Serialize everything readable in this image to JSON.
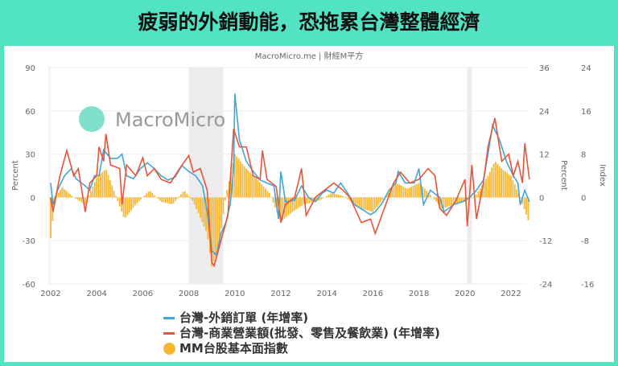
{
  "header": {
    "title": "疲弱的外銷動能，恐拖累台灣整體經濟"
  },
  "chart_data": {
    "type": "line+bar",
    "source": "MacroMicro.me | 財經M平方",
    "watermark": "MacroMicro",
    "xlim": [
      2002,
      2022.9
    ],
    "xticks": [
      "2002",
      "2004",
      "2006",
      "2008",
      "2010",
      "2012",
      "2014",
      "2016",
      "2018",
      "2020",
      "2022"
    ],
    "axes": {
      "left": {
        "label": "Percent",
        "ylim": [
          -60,
          90
        ],
        "ticks": [
          "90",
          "60",
          "30",
          "0",
          "-30",
          "-60"
        ]
      },
      "right1": {
        "label": "Percent",
        "ylim": [
          -24,
          36
        ],
        "ticks": [
          "36",
          "24",
          "12",
          "0",
          "-12",
          "-24"
        ]
      },
      "right2": {
        "label": "Index",
        "ylim": [
          -16,
          24
        ],
        "ticks": [
          "24",
          "16",
          "8",
          "0",
          "-8",
          "-16"
        ]
      }
    },
    "grid": true,
    "legend_position": "bottom",
    "recessions": [
      [
        2008.0,
        2009.5
      ],
      [
        2020.1,
        2020.3
      ]
    ],
    "colors": {
      "blue": "#3fa7d6",
      "red": "#e8543a",
      "bar": "#f7b731",
      "recession": "#ececef"
    },
    "series": [
      {
        "name": "台灣-外銷訂單 (年增率)",
        "type": "line",
        "axis": "left",
        "color": "#3fa7d6",
        "x": [
          2002.0,
          2002.1,
          2002.3,
          2002.6,
          2002.9,
          2003.1,
          2003.5,
          2003.7,
          2003.9,
          2004.1,
          2004.3,
          2004.6,
          2004.9,
          2005.1,
          2005.3,
          2005.6,
          2005.9,
          2006.2,
          2006.5,
          2006.8,
          2007.1,
          2007.4,
          2007.7,
          2008.0,
          2008.3,
          2008.6,
          2008.8,
          2009.0,
          2009.2,
          2009.4,
          2009.6,
          2009.8,
          2009.95,
          2010.0,
          2010.2,
          2010.5,
          2010.8,
          2011.1,
          2011.4,
          2011.7,
          2011.9,
          2012.0,
          2012.2,
          2012.6,
          2012.9,
          2013.2,
          2013.5,
          2013.8,
          2014.0,
          2014.3,
          2014.6,
          2014.9,
          2015.2,
          2015.5,
          2015.9,
          2016.1,
          2016.4,
          2016.7,
          2017.0,
          2017.1,
          2017.4,
          2017.8,
          2018.0,
          2018.2,
          2018.5,
          2018.9,
          2019.1,
          2019.5,
          2019.9,
          2020.2,
          2020.5,
          2020.8,
          2021.0,
          2021.2,
          2021.5,
          2021.8,
          2022.1,
          2022.3,
          2022.4,
          2022.6,
          2022.8
        ],
        "y": [
          10,
          -5,
          5,
          15,
          20,
          13,
          8,
          5,
          15,
          15,
          33,
          27,
          27,
          30,
          15,
          13,
          20,
          24,
          20,
          15,
          12,
          14,
          22,
          18,
          15,
          8,
          -10,
          -37,
          -40,
          -25,
          -18,
          -5,
          20,
          72,
          40,
          25,
          18,
          12,
          10,
          8,
          -15,
          18,
          -3,
          -2,
          8,
          0,
          -3,
          3,
          5,
          3,
          10,
          3,
          -5,
          -8,
          -12,
          -10,
          -4,
          5,
          10,
          18,
          10,
          10,
          20,
          -5,
          5,
          0,
          -10,
          -5,
          -3,
          0,
          5,
          12,
          30,
          50,
          40,
          25,
          15,
          10,
          -5,
          5,
          -3
        ]
      },
      {
        "name": "台灣-商業營業額(批發、零售及餐飲業) (年增率)",
        "type": "line",
        "axis": "right1",
        "color": "#e8543a",
        "x": [
          2002.0,
          2002.1,
          2002.4,
          2002.7,
          2003.0,
          2003.2,
          2003.5,
          2003.7,
          2004.0,
          2004.1,
          2004.3,
          2004.4,
          2004.6,
          2005.0,
          2005.1,
          2005.3,
          2005.7,
          2006.0,
          2006.2,
          2006.5,
          2006.8,
          2007.2,
          2007.6,
          2008.0,
          2008.2,
          2008.5,
          2008.8,
          2009.0,
          2009.1,
          2009.4,
          2009.7,
          2009.95,
          2010.2,
          2010.5,
          2010.8,
          2011.1,
          2011.2,
          2011.4,
          2011.8,
          2012.0,
          2012.2,
          2012.6,
          2012.9,
          2013.1,
          2013.5,
          2013.9,
          2014.3,
          2014.7,
          2015.0,
          2015.5,
          2015.9,
          2016.1,
          2016.5,
          2016.9,
          2017.2,
          2017.6,
          2018.0,
          2018.4,
          2018.7,
          2018.9,
          2019.2,
          2019.6,
          2020.0,
          2020.1,
          2020.3,
          2020.5,
          2020.8,
          2021.0,
          2021.3,
          2021.6,
          2021.9,
          2022.1,
          2022.3,
          2022.5,
          2022.6,
          2022.8
        ],
        "y": [
          0,
          -4,
          6,
          13,
          6,
          8,
          -4,
          4,
          6,
          14,
          10,
          17.6,
          9,
          8,
          -2,
          9,
          6,
          11,
          6,
          8,
          5,
          4,
          8,
          11.6,
          7,
          8,
          2,
          -18,
          -19,
          -12,
          -5,
          19,
          14,
          14,
          6,
          5,
          13,
          5,
          3,
          -7,
          -2,
          0,
          8,
          -5,
          0,
          2,
          4,
          2,
          0,
          -7,
          -6,
          -10,
          -3,
          4,
          7,
          4,
          5,
          8,
          6,
          -3,
          -5,
          -1,
          5,
          -8,
          9,
          -6,
          4,
          14,
          22,
          10,
          12,
          6,
          10,
          4,
          15,
          5
        ]
      },
      {
        "name": "MM台股基本面指數",
        "type": "bar",
        "axis": "right2",
        "color": "#f7b731",
        "x": [
          2002.0,
          2002.2,
          2002.5,
          2003.0,
          2003.5,
          2004.0,
          2004.4,
          2005.2,
          2005.7,
          2006.3,
          2006.8,
          2007.3,
          2007.8,
          2008.2,
          2008.8,
          2009.0,
          2009.3,
          2009.6,
          2010.0,
          2010.5,
          2011.0,
          2011.5,
          2012.0,
          2012.5,
          2013.0,
          2013.7,
          2014.2,
          2014.7,
          2015.5,
          2016.0,
          2016.5,
          2017.0,
          2017.5,
          2018.0,
          2018.5,
          2019.0,
          2019.5,
          2020.0,
          2020.5,
          2021.0,
          2021.3,
          2021.6,
          2022.0,
          2022.4,
          2022.8
        ],
        "y": [
          -7.5,
          0,
          1.9,
          0,
          -1.3,
          3.7,
          5.3,
          -4,
          -1.3,
          1.3,
          -0.8,
          -1.3,
          1.3,
          -0.8,
          -6.7,
          -12.8,
          -9.3,
          0,
          8,
          5.3,
          3.2,
          0.8,
          -4.5,
          -2.7,
          -1.3,
          -0.5,
          0.8,
          0.3,
          -2.1,
          -2.7,
          0,
          2.7,
          1.6,
          2.7,
          0.5,
          -2.1,
          -1.3,
          -0.8,
          0.5,
          4,
          6.7,
          5.3,
          4,
          0,
          -4.8
        ]
      }
    ]
  }
}
